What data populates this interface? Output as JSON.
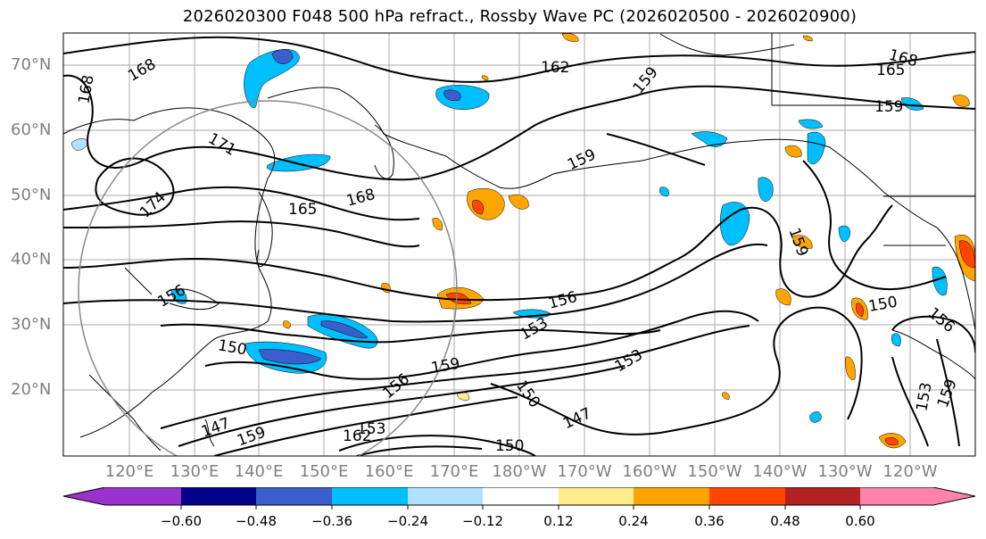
{
  "title": "2026020300 F048 500 hPa refract., Rossby Wave PC (2026020500 - 2026020900)",
  "lat_labels": [
    "70°N",
    "60°N",
    "50°N",
    "40°N",
    "30°N",
    "20°N"
  ],
  "lon_labels": [
    "120°E",
    "130°E",
    "140°E",
    "150°E",
    "160°E",
    "170°E",
    "180°W",
    "170°W",
    "160°W",
    "150°W",
    "140°W",
    "130°W",
    "120°W"
  ],
  "contour_labels": [
    "168",
    "168",
    "162",
    "165",
    "168",
    "159",
    "171",
    "174",
    "165",
    "168",
    "159",
    "159",
    "156",
    "156",
    "153",
    "150",
    "150",
    "156",
    "159",
    "153",
    "150",
    "147",
    "147",
    "159",
    "162",
    "153",
    "159",
    "156",
    "150",
    "159",
    "153"
  ],
  "colorbar": {
    "ticks": [
      "−0.60",
      "−0.48",
      "−0.36",
      "−0.24",
      "−0.12",
      "0.12",
      "0.24",
      "0.36",
      "0.48",
      "0.60"
    ],
    "colors": [
      "#9a32cd",
      "#00008b",
      "#3a5fcd",
      "#00bfff",
      "#b0e2ff",
      "#ffffff",
      "#ffec8b",
      "#ffa500",
      "#ff4500",
      "#b22222",
      "#ff82ab"
    ]
  }
}
